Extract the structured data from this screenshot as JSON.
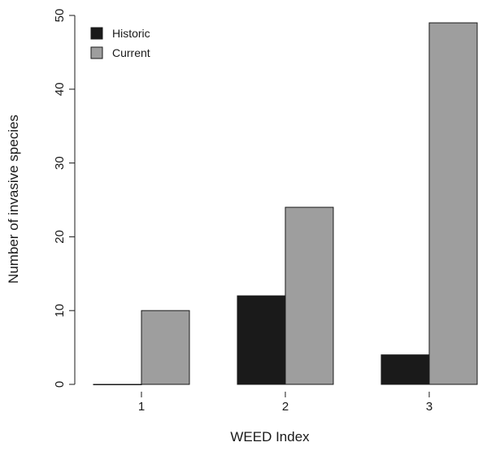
{
  "chart_data": {
    "type": "bar",
    "title": "",
    "xlabel": "WEED Index",
    "ylabel": "Number of invasive species",
    "categories": [
      "1",
      "2",
      "3"
    ],
    "series": [
      {
        "name": "Historic",
        "values": [
          0,
          12,
          4
        ],
        "color": "#1a1a1a"
      },
      {
        "name": "Current",
        "values": [
          10,
          24,
          49
        ],
        "color": "#9e9e9e"
      }
    ],
    "ylim": [
      0,
      50
    ],
    "yticks": [
      "0",
      "10",
      "20",
      "30",
      "40",
      "50"
    ],
    "grid": false,
    "legend_position": "top-left"
  }
}
